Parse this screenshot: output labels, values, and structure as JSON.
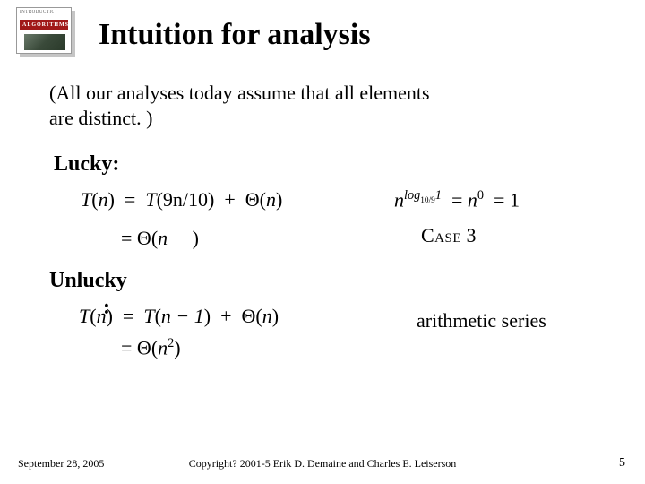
{
  "book": {
    "top_text": "INTRODUCTION TO",
    "title": "ALGORITHMS"
  },
  "title": "Intuition for analysis",
  "note_line1": "(All our analyses today assume that all elements",
  "note_line2": "are distinct. )",
  "lucky_label": "Lucky:",
  "lucky": {
    "lhs": "T",
    "arg": "n",
    "rhs1_a": "T",
    "rhs1_b": "9n/10",
    "theta": "Θ",
    "theta_arg": "n",
    "const1": "1",
    "log_base": "10/9",
    "log_arg": "1",
    "n0": "0",
    "eq1": "= 1",
    "case_word": "Case",
    "case_num": " 3"
  },
  "unlucky_label": "Unlucky",
  "unlucky_colon": ":",
  "unlucky": {
    "lhs": "T",
    "arg": "n",
    "rhs_a": "T",
    "rhs_b": "n − 1",
    "theta": "Θ",
    "theta_arg": "n",
    "result_exp": "2",
    "arith": "arithmetic series"
  },
  "footer": {
    "date": "September 28, 2005",
    "copyright": "Copyright?   2001-5 Erik D. Demaine and Charles E. Leiserson",
    "page": "5"
  }
}
